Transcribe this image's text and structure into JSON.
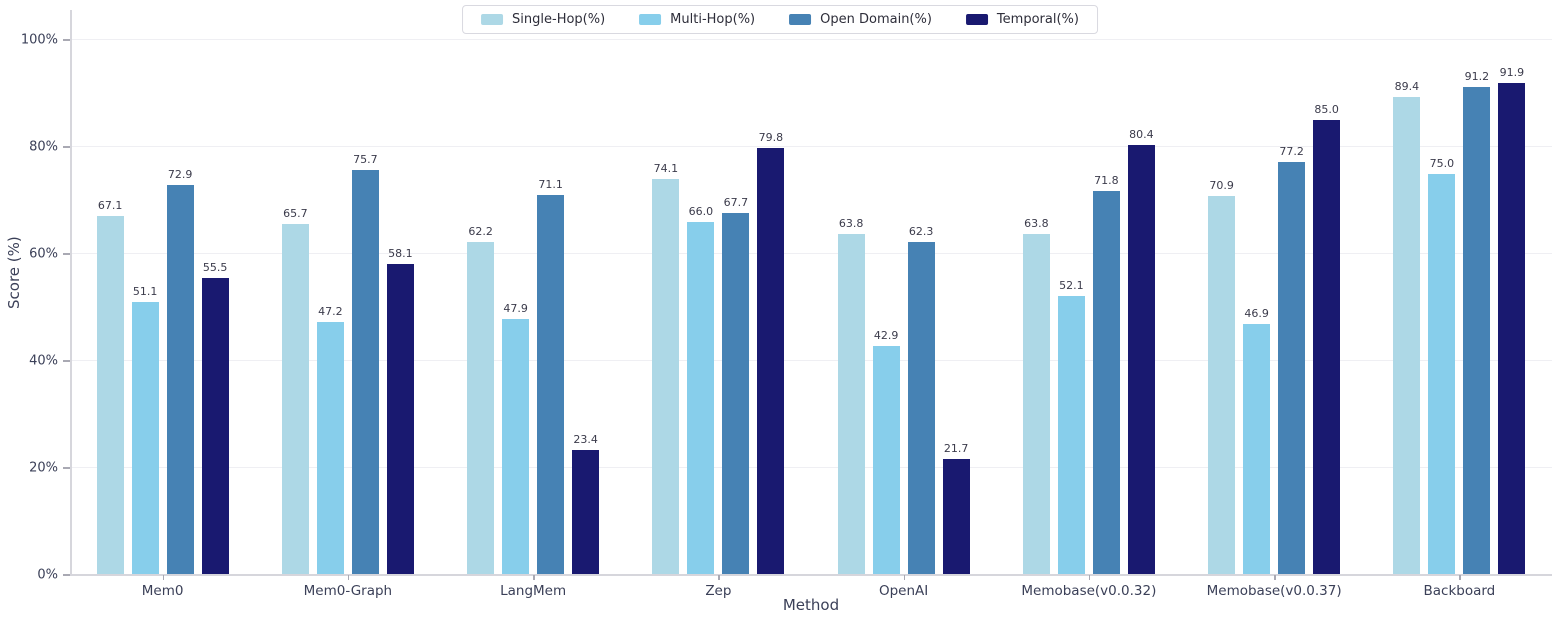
{
  "chart_data": {
    "type": "bar",
    "title": "",
    "xlabel": "Method",
    "ylabel": "Score (%)",
    "ylim": [
      0,
      100
    ],
    "grid": true,
    "legend_position": "top-center",
    "yticks": [
      {
        "value": 0,
        "label": "0%"
      },
      {
        "value": 20,
        "label": "20%"
      },
      {
        "value": 40,
        "label": "40%"
      },
      {
        "value": 60,
        "label": "60%"
      },
      {
        "value": 80,
        "label": "80%"
      },
      {
        "value": 100,
        "label": "100%"
      }
    ],
    "categories": [
      "Mem0",
      "Mem0-Graph",
      "LangMem",
      "Zep",
      "OpenAI",
      "Memobase(v0.0.32)",
      "Memobase(v0.0.37)",
      "Backboard"
    ],
    "series": [
      {
        "name": "Single-Hop(%)",
        "color": "#add8e6",
        "values": [
          67.1,
          65.7,
          62.2,
          74.1,
          63.8,
          63.8,
          70.9,
          89.4
        ]
      },
      {
        "name": "Multi-Hop(%)",
        "color": "#87ceeb",
        "values": [
          51.1,
          47.2,
          47.9,
          66.0,
          42.9,
          52.1,
          46.9,
          75.0
        ]
      },
      {
        "name": "Open Domain(%)",
        "color": "#4682b4",
        "values": [
          72.9,
          75.7,
          71.1,
          67.7,
          62.3,
          71.8,
          77.2,
          91.2
        ]
      },
      {
        "name": "Temporal(%)",
        "color": "#191970",
        "values": [
          55.5,
          58.1,
          23.4,
          79.8,
          21.7,
          80.4,
          85.0,
          91.9
        ]
      }
    ]
  }
}
